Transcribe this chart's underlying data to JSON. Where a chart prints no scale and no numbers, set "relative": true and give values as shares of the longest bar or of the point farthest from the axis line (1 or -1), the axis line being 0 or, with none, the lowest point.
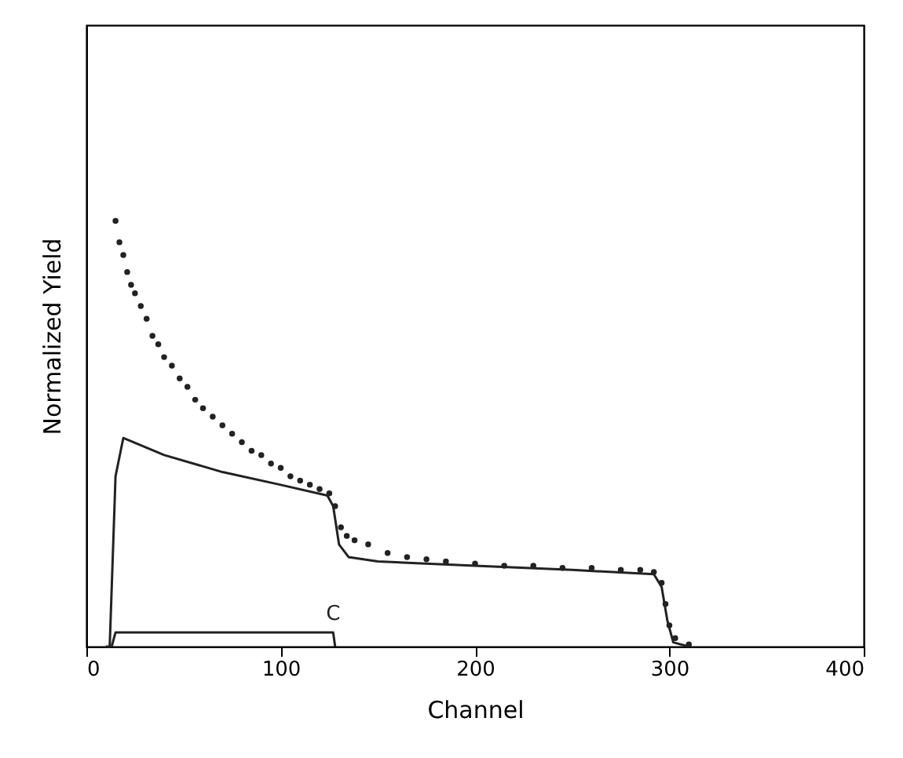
{
  "chart_data": {
    "type": "line",
    "xlabel": "Channel",
    "ylabel": "Normalized Yield",
    "relative": true,
    "xlim": [
      0,
      400
    ],
    "xticks": [
      0,
      100,
      200,
      300,
      400
    ],
    "series": [
      {
        "type": "scatter",
        "color": "#222222",
        "marker": "circle",
        "x": [
          15,
          17,
          19,
          21,
          23,
          25,
          28,
          31,
          34,
          37,
          40,
          44,
          48,
          52,
          56,
          60,
          65,
          70,
          75,
          80,
          85,
          90,
          95,
          100,
          105,
          110,
          115,
          120,
          125,
          128,
          131,
          134,
          138,
          145,
          155,
          165,
          175,
          185,
          200,
          215,
          230,
          245,
          260,
          275,
          285,
          292,
          296,
          298,
          300,
          303,
          310
        ],
        "values": [
          1.0,
          0.95,
          0.92,
          0.88,
          0.85,
          0.83,
          0.8,
          0.77,
          0.73,
          0.71,
          0.68,
          0.66,
          0.63,
          0.61,
          0.58,
          0.56,
          0.54,
          0.52,
          0.5,
          0.48,
          0.46,
          0.45,
          0.43,
          0.42,
          0.4,
          0.39,
          0.38,
          0.37,
          0.36,
          0.33,
          0.28,
          0.26,
          0.25,
          0.24,
          0.22,
          0.21,
          0.205,
          0.2,
          0.195,
          0.19,
          0.19,
          0.185,
          0.185,
          0.18,
          0.18,
          0.175,
          0.15,
          0.1,
          0.05,
          0.02,
          0.005
        ]
      },
      {
        "type": "line",
        "color": "#222222",
        "x": [
          10,
          12,
          15,
          19,
          40,
          70,
          100,
          124,
          127,
          130,
          135,
          150,
          200,
          250,
          292,
          296,
          299,
          302,
          310
        ],
        "values": [
          0,
          0,
          0.4,
          0.49,
          0.45,
          0.41,
          0.38,
          0.355,
          0.33,
          0.24,
          0.21,
          0.2,
          0.19,
          0.18,
          0.17,
          0.14,
          0.06,
          0.01,
          0
        ]
      },
      {
        "type": "line",
        "name": "C",
        "color": "#222222",
        "x": [
          13,
          15,
          127,
          128
        ],
        "values": [
          0,
          0.033,
          0.033,
          0
        ]
      }
    ]
  }
}
